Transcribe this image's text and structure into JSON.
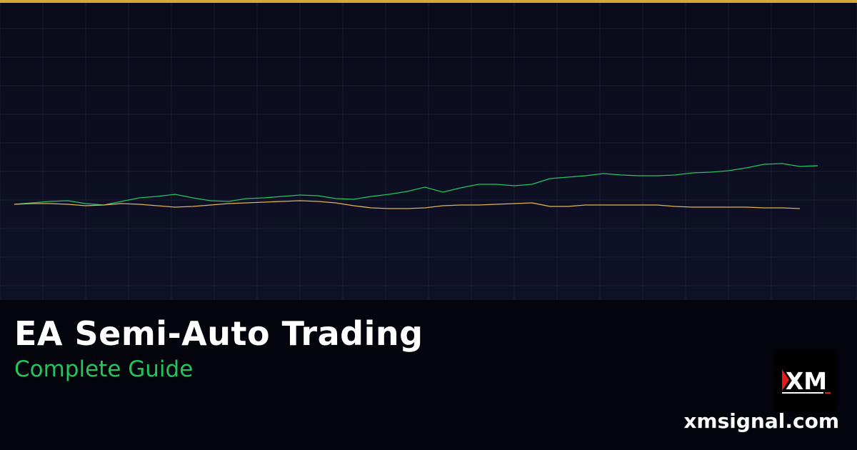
{
  "title": "EA Semi-Auto Trading",
  "subtitle": "Complete Guide",
  "site": "xmsignal.com",
  "logo": {
    "text": "XM",
    "icon": "xm-logo"
  },
  "colors": {
    "accent_bar": "#d4a73a",
    "green_line": "#22c55e",
    "gold_line": "#e0b34f",
    "subtitle": "#22c55e"
  },
  "chart_data": {
    "type": "line",
    "grid": true,
    "axes_visible": false,
    "series": [
      {
        "color": "#22c55e",
        "values": [
          134,
          136,
          138,
          139,
          135,
          133,
          138,
          143,
          145,
          148,
          143,
          139,
          138,
          142,
          143,
          145,
          147,
          146,
          142,
          141,
          145,
          148,
          152,
          158,
          151,
          157,
          162,
          162,
          160,
          162,
          170,
          172,
          174,
          177,
          175,
          174,
          174,
          175,
          178,
          179,
          181,
          185,
          190,
          191,
          187,
          188
        ]
      },
      {
        "color": "#e0b34f",
        "values": [
          134,
          135,
          135,
          134,
          132,
          133,
          135,
          134,
          132,
          130,
          131,
          133,
          135,
          136,
          137,
          138,
          139,
          138,
          136,
          132,
          129,
          128,
          128,
          129,
          132,
          133,
          133,
          134,
          135,
          136,
          131,
          131,
          133,
          133,
          133,
          133,
          133,
          131,
          130,
          130,
          130,
          130,
          129,
          129,
          128
        ]
      }
    ]
  }
}
